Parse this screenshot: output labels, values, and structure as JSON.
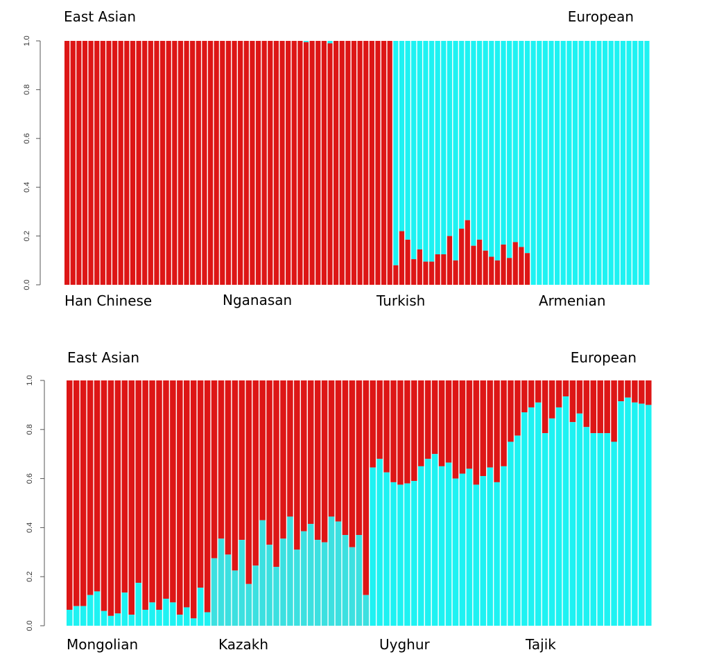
{
  "chart_data": [
    {
      "type": "bar",
      "stacked": true,
      "title": "",
      "xlabel": "",
      "ylabel": "",
      "ylim": [
        0,
        1
      ],
      "yticks": [
        "0.0",
        "0.2",
        "0.4",
        "0.6",
        "0.8",
        "1.0"
      ],
      "top_labels": [
        "East Asian",
        "European"
      ],
      "populations": [
        "Han Chinese",
        "Nganasan",
        "Turkish",
        "Armenian"
      ],
      "colors": {
        "east_asian": "#dd1616",
        "european": "#1ef2f2"
      },
      "bottom_component": "east_asian",
      "east_asian_fraction": [
        1.0,
        1.0,
        1.0,
        1.0,
        1.0,
        1.0,
        1.0,
        1.0,
        1.0,
        1.0,
        1.0,
        1.0,
        1.0,
        1.0,
        1.0,
        1.0,
        1.0,
        1.0,
        1.0,
        1.0,
        1.0,
        1.0,
        1.0,
        1.0,
        1.0,
        1.0,
        1.0,
        1.0,
        1.0,
        1.0,
        1.0,
        1.0,
        1.0,
        1.0,
        1.0,
        1.0,
        1.0,
        1.0,
        1.0,
        1.0,
        0.995,
        1.0,
        1.0,
        1.0,
        0.99,
        1.0,
        1.0,
        1.0,
        1.0,
        1.0,
        1.0,
        1.0,
        1.0,
        1.0,
        1.0,
        0.08,
        0.22,
        0.185,
        0.105,
        0.145,
        0.095,
        0.095,
        0.125,
        0.125,
        0.2,
        0.1,
        0.23,
        0.265,
        0.16,
        0.185,
        0.14,
        0.115,
        0.1,
        0.165,
        0.11,
        0.175,
        0.155,
        0.13,
        0,
        0,
        0,
        0,
        0,
        0,
        0,
        0,
        0,
        0,
        0,
        0,
        0,
        0,
        0,
        0,
        0,
        0,
        0,
        0
      ]
    },
    {
      "type": "bar",
      "stacked": true,
      "title": "",
      "xlabel": "",
      "ylabel": "",
      "ylim": [
        0,
        1
      ],
      "yticks": [
        "0.0",
        "0.2",
        "0.4",
        "0.6",
        "0.8",
        "1.0"
      ],
      "top_labels": [
        "East Asian",
        "European"
      ],
      "populations": [
        "Mongolian",
        "Kazakh",
        "Uyghur",
        "Tajik"
      ],
      "colors": {
        "east_asian": "#dd1616",
        "european": "#1ef2f2",
        "european_shaded": "#3ce0e0"
      },
      "bottom_component": "european",
      "european_fraction": [
        0.065,
        0.08,
        0.08,
        0.125,
        0.14,
        0.06,
        0.04,
        0.05,
        0.135,
        0.045,
        0.175,
        0.065,
        0.095,
        0.065,
        0.11,
        0.095,
        0.045,
        0.075,
        0.03,
        0.155,
        0.055,
        0.275,
        0.355,
        0.29,
        0.225,
        0.35,
        0.17,
        0.245,
        0.43,
        0.33,
        0.24,
        0.355,
        0.445,
        0.31,
        0.385,
        0.415,
        0.35,
        0.34,
        0.445,
        0.425,
        0.37,
        0.32,
        0.37,
        0.125,
        0.645,
        0.68,
        0.625,
        0.585,
        0.575,
        0.58,
        0.59,
        0.65,
        0.68,
        0.7,
        0.65,
        0.665,
        0.6,
        0.62,
        0.64,
        0.575,
        0.61,
        0.645,
        0.585,
        0.65,
        0.75,
        0.775,
        0.87,
        0.89,
        0.91,
        0.785,
        0.845,
        0.89,
        0.935,
        0.83,
        0.865,
        0.81,
        0.785,
        0.785,
        0.785,
        0.75,
        0.915,
        0.93,
        0.91,
        0.905,
        0.9
      ]
    }
  ]
}
